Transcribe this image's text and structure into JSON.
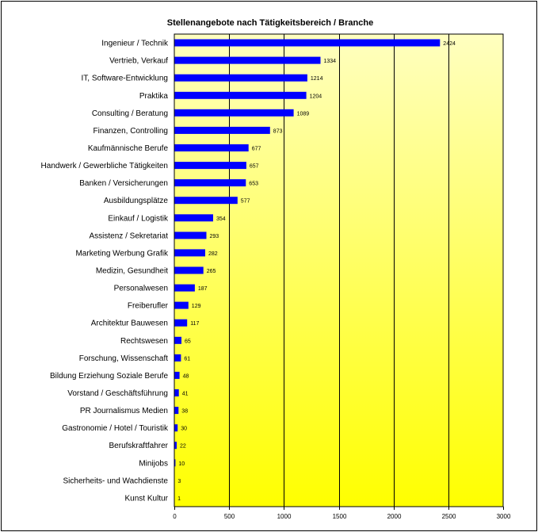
{
  "chart_data": {
    "type": "bar",
    "orientation": "horizontal",
    "title": "Stellenangebote nach Tätigkeitsbereich / Branche",
    "categories": [
      "Ingenieur / Technik",
      "Vertrieb, Verkauf",
      "IT, Software-Entwicklung",
      "Praktika",
      "Consulting / Beratung",
      "Finanzen, Controlling",
      "Kaufmännische Berufe",
      "Handwerk / Gewerbliche Tätigkeiten",
      "Banken / Versicherungen",
      "Ausbildungsplätze",
      "Einkauf / Logistik",
      "Assistenz / Sekretariat",
      "Marketing Werbung Grafik",
      "Medizin, Gesundheit",
      "Personalwesen",
      "Freiberufler",
      "Architektur Bauwesen",
      "Rechtswesen",
      "Forschung, Wissenschaft",
      "Bildung Erziehung Soziale Berufe",
      "Vorstand / Geschäftsführung",
      "PR Journalismus Medien",
      "Gastronomie / Hotel / Touristik",
      "Berufskraftfahrer",
      "Minijobs",
      "Sicherheits- und Wachdienste",
      "Kunst Kultur"
    ],
    "values": [
      2424,
      1334,
      1214,
      1204,
      1089,
      873,
      677,
      657,
      653,
      577,
      354,
      293,
      282,
      265,
      187,
      129,
      117,
      65,
      61,
      48,
      41,
      38,
      30,
      22,
      10,
      3,
      1
    ],
    "data_labels": [
      "2424",
      "1334",
      "1214",
      "1204",
      "1089",
      "873",
      "677",
      "657",
      "653",
      "577",
      "354",
      "293",
      "282",
      "265",
      "187",
      "129",
      "117",
      "65",
      "61",
      "48",
      "41",
      "38",
      "30",
      "22",
      "10",
      "3",
      "1"
    ],
    "xlim": [
      0,
      3000
    ],
    "x_ticks": [
      0,
      500,
      1000,
      1500,
      2000,
      2500,
      3000
    ],
    "x_tick_labels": [
      "0",
      "500",
      "1000",
      "1500",
      "2000",
      "2500",
      "3000"
    ],
    "grid": "vertical",
    "legend": "none",
    "colors": {
      "bar": "#0000ff",
      "plot_top": "#ffffc0",
      "plot_bottom": "#ffff00",
      "gridline": "#000000"
    }
  }
}
